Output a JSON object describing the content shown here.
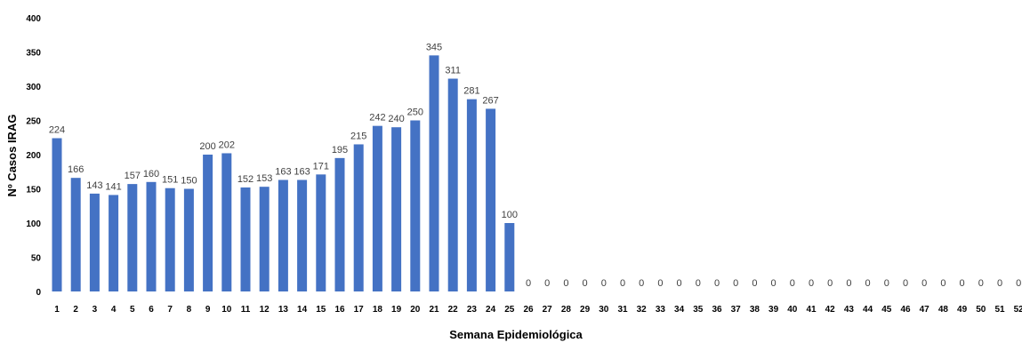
{
  "chart_data": {
    "type": "bar",
    "title": "",
    "xlabel": "Semana Epidemiológica",
    "ylabel": "Nº Casos IRAG",
    "ylim": [
      0,
      400
    ],
    "yticks": [
      0,
      50,
      100,
      150,
      200,
      250,
      300,
      350,
      400
    ],
    "grid": false,
    "legend": "none",
    "bar_color": "#4472C4",
    "categories": [
      "1",
      "2",
      "3",
      "4",
      "5",
      "6",
      "7",
      "8",
      "9",
      "10",
      "11",
      "12",
      "13",
      "14",
      "15",
      "16",
      "17",
      "18",
      "19",
      "20",
      "21",
      "22",
      "23",
      "24",
      "25",
      "26",
      "27",
      "28",
      "29",
      "30",
      "31",
      "32",
      "33",
      "34",
      "35",
      "36",
      "37",
      "38",
      "39",
      "40",
      "41",
      "42",
      "43",
      "44",
      "45",
      "46",
      "47",
      "48",
      "49",
      "50",
      "51",
      "52"
    ],
    "values": [
      224,
      166,
      143,
      141,
      157,
      160,
      151,
      150,
      200,
      202,
      152,
      153,
      163,
      163,
      171,
      195,
      215,
      242,
      240,
      250,
      345,
      311,
      281,
      267,
      100,
      0,
      0,
      0,
      0,
      0,
      0,
      0,
      0,
      0,
      0,
      0,
      0,
      0,
      0,
      0,
      0,
      0,
      0,
      0,
      0,
      0,
      0,
      0,
      0,
      0,
      0,
      0
    ]
  }
}
